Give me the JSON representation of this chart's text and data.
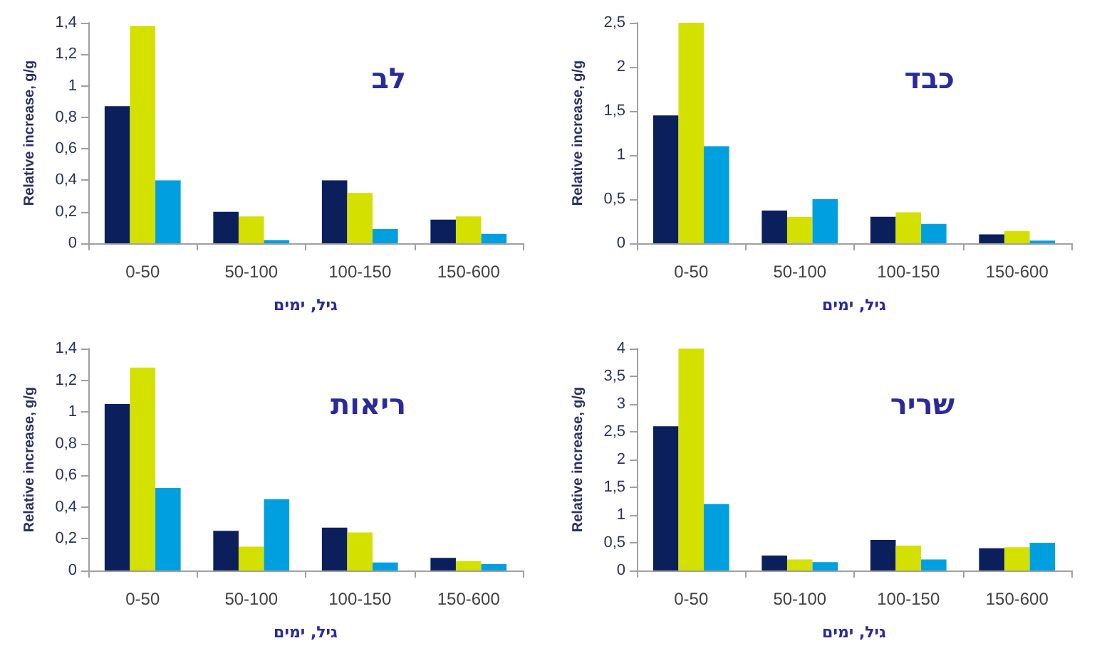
{
  "chart_data": [
    {
      "type": "bar",
      "title": "לב",
      "xlabel": "גיל, ימים",
      "ylabel": "Relative increase, g/g",
      "categories": [
        "0-50",
        "50-100",
        "100-150",
        "150-600"
      ],
      "series": [
        {
          "color": "#0b1f5c",
          "values": [
            0.87,
            0.2,
            0.4,
            0.15
          ]
        },
        {
          "color": "#d4e000",
          "values": [
            1.38,
            0.17,
            0.32,
            0.17
          ]
        },
        {
          "color": "#00a0e0",
          "values": [
            0.4,
            0.02,
            0.09,
            0.06
          ]
        }
      ],
      "ylim": [
        0,
        1.4
      ],
      "yticks": [
        0,
        {
          "value": 0.2,
          "label": "0,2"
        },
        {
          "value": 0.4,
          "label": "0,4"
        },
        {
          "value": 0.6,
          "label": "0,6"
        },
        {
          "value": 0.8,
          "label": "0,8"
        },
        1,
        {
          "value": 1.2,
          "label": "1,2"
        },
        {
          "value": 1.4,
          "label": "1,4"
        }
      ],
      "grid": false
    },
    {
      "type": "bar",
      "title": "כבד",
      "xlabel": "גיל, ימים",
      "ylabel": "Relative increase, g/g",
      "categories": [
        "0-50",
        "50-100",
        "100-150",
        "150-600"
      ],
      "series": [
        {
          "color": "#0b1f5c",
          "values": [
            1.45,
            0.37,
            0.3,
            0.1
          ]
        },
        {
          "color": "#d4e000",
          "values": [
            2.5,
            0.3,
            0.35,
            0.14
          ]
        },
        {
          "color": "#00a0e0",
          "values": [
            1.1,
            0.5,
            0.22,
            0.03
          ]
        }
      ],
      "ylim": [
        0,
        2.5
      ],
      "yticks": [
        0,
        {
          "value": 0.5,
          "label": "0,5"
        },
        1,
        {
          "value": 1.5,
          "label": "1,5"
        },
        2,
        {
          "value": 2.5,
          "label": "2,5"
        }
      ],
      "grid": false
    },
    {
      "type": "bar",
      "title": "ריאות",
      "xlabel": "גיל, ימים",
      "ylabel": "Relative increase, g/g",
      "categories": [
        "0-50",
        "50-100",
        "100-150",
        "150-600"
      ],
      "series": [
        {
          "color": "#0b1f5c",
          "values": [
            1.05,
            0.25,
            0.27,
            0.08
          ]
        },
        {
          "color": "#d4e000",
          "values": [
            1.28,
            0.15,
            0.24,
            0.06
          ]
        },
        {
          "color": "#00a0e0",
          "values": [
            0.52,
            0.45,
            0.05,
            0.04
          ]
        }
      ],
      "ylim": [
        0,
        1.4
      ],
      "yticks": [
        0,
        {
          "value": 0.2,
          "label": "0,2"
        },
        {
          "value": 0.4,
          "label": "0,4"
        },
        {
          "value": 0.6,
          "label": "0,6"
        },
        {
          "value": 0.8,
          "label": "0,8"
        },
        1,
        {
          "value": 1.2,
          "label": "1,2"
        },
        {
          "value": 1.4,
          "label": "1,4"
        }
      ],
      "grid": false
    },
    {
      "type": "bar",
      "title": "שריר",
      "xlabel": "גיל, ימים",
      "ylabel": "Relative increase, g/g",
      "categories": [
        "0-50",
        "50-100",
        "100-150",
        "150-600"
      ],
      "series": [
        {
          "color": "#0b1f5c",
          "values": [
            2.6,
            0.27,
            0.55,
            0.4
          ]
        },
        {
          "color": "#d4e000",
          "values": [
            4.0,
            0.2,
            0.45,
            0.42
          ]
        },
        {
          "color": "#00a0e0",
          "values": [
            1.2,
            0.15,
            0.2,
            0.5
          ]
        }
      ],
      "ylim": [
        0,
        4
      ],
      "yticks": [
        0,
        {
          "value": 0.5,
          "label": "0,5"
        },
        1,
        {
          "value": 1.5,
          "label": "1,5"
        },
        2,
        {
          "value": 2.5,
          "label": "2,5"
        },
        3,
        {
          "value": 3.5,
          "label": "3,5"
        },
        4
      ],
      "grid": false
    }
  ]
}
